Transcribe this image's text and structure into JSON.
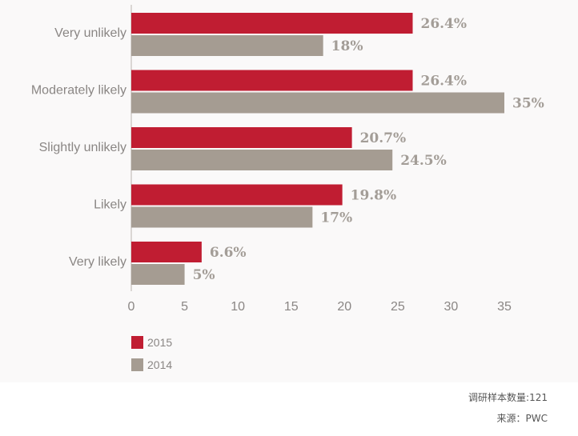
{
  "chart_data": {
    "type": "bar",
    "orientation": "horizontal",
    "categories": [
      "Very unlikely",
      "Moderately likely",
      "Slightly unlikely",
      "Likely",
      "Very likely"
    ],
    "series": [
      {
        "name": "2015",
        "color": "#c01d32",
        "values": [
          26.4,
          26.4,
          20.7,
          19.8,
          6.6
        ],
        "labels": [
          "26.4%",
          "26.4%",
          "20.7%",
          "19.8%",
          "6.6%"
        ]
      },
      {
        "name": "2014",
        "color": "#a59c92",
        "values": [
          18,
          35,
          24.5,
          17,
          5
        ],
        "labels": [
          "18%",
          "35%",
          "24.5%",
          "17%",
          "5%"
        ]
      }
    ],
    "xlim": [
      0,
      35
    ],
    "xticks": [
      0,
      5,
      10,
      15,
      20,
      25,
      30,
      35
    ],
    "grid": false,
    "legend_position": "bottom-left"
  },
  "footnotes": {
    "sample": "调研样本数量:121",
    "source": "来源：PWC"
  }
}
